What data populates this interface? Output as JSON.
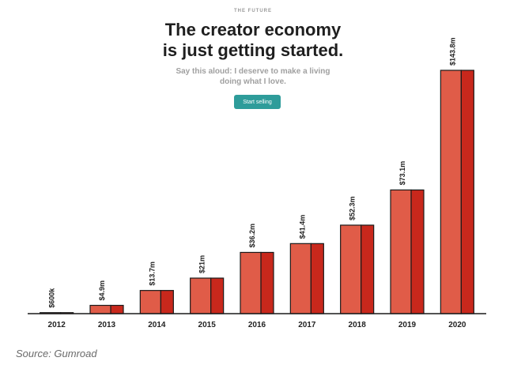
{
  "header": {
    "eyebrow": "THE FUTURE",
    "title_line1": "The creator economy",
    "title_line2": "is just getting started.",
    "subtitle_line1": "Say this aloud: I deserve to make a living",
    "subtitle_line2": "doing what I love.",
    "cta_label": "Start selling"
  },
  "source": "Source: Gumroad",
  "colors": {
    "bar_light": "#e05c48",
    "bar_dark": "#c8281c",
    "outline": "#1a1a1a",
    "button": "#2e9c9a"
  },
  "chart_data": {
    "type": "bar",
    "categories": [
      "2012",
      "2013",
      "2014",
      "2015",
      "2016",
      "2017",
      "2018",
      "2019",
      "2020"
    ],
    "values": [
      0.6,
      4.9,
      13.7,
      21,
      36.2,
      41.4,
      52.3,
      73.1,
      143.8
    ],
    "value_labels": [
      "$600k",
      "$4.9m",
      "$13.7m",
      "$21m",
      "$36.2m",
      "$41.4m",
      "$52.3m",
      "$73.1m",
      "$143.8m"
    ],
    "title": "",
    "xlabel": "",
    "ylabel": "",
    "grid": false
  }
}
